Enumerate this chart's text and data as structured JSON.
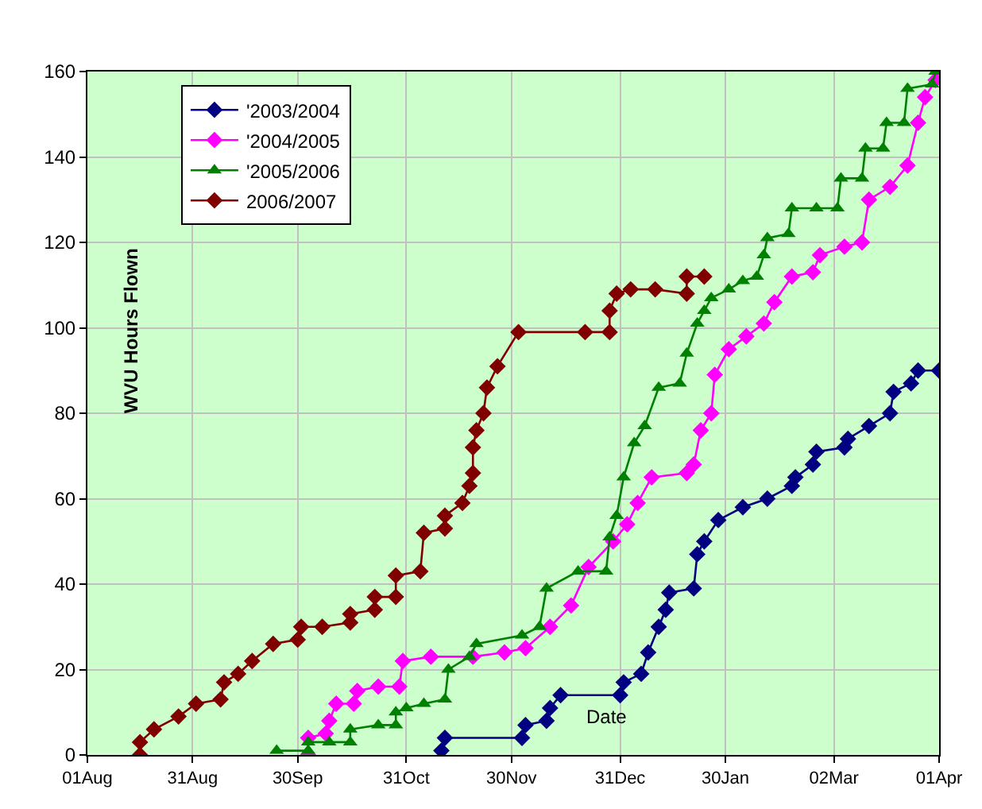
{
  "chart_data": {
    "type": "line",
    "ylabel": "WVU Hours Flown",
    "xlabel": "Date",
    "xlim": [
      "2006-08-01",
      "2007-04-01"
    ],
    "xticks": [
      {
        "value": "2006-08-01",
        "label": "01Aug"
      },
      {
        "value": "2006-08-31",
        "label": "31Aug"
      },
      {
        "value": "2006-09-30",
        "label": "30Sep"
      },
      {
        "value": "2006-10-31",
        "label": "31Oct"
      },
      {
        "value": "2006-11-30",
        "label": "30Nov"
      },
      {
        "value": "2006-12-31",
        "label": "31Dec"
      },
      {
        "value": "2007-01-30",
        "label": "30Jan"
      },
      {
        "value": "2007-03-02",
        "label": "02Mar"
      },
      {
        "value": "2007-04-01",
        "label": "01Apr"
      }
    ],
    "ylim": [
      0,
      160
    ],
    "yticks": [
      0,
      20,
      40,
      60,
      80,
      100,
      120,
      140,
      160
    ],
    "grid": true,
    "legend": "top left",
    "line_style": "solid",
    "series": [
      {
        "name": "'2003/2004",
        "color": "#000080",
        "marker": "diamond",
        "x": [
          "2006-11-10",
          "2006-11-11",
          "2006-12-03",
          "2006-12-04",
          "2006-12-10",
          "2006-12-11",
          "2006-12-14",
          "2006-12-31",
          "2007-01-01",
          "2007-01-06",
          "2007-01-08",
          "2007-01-11",
          "2007-01-13",
          "2007-01-14",
          "2007-01-21",
          "2007-01-22",
          "2007-01-24",
          "2007-01-28",
          "2007-02-04",
          "2007-02-11",
          "2007-02-18",
          "2007-02-19",
          "2007-02-24",
          "2007-02-25",
          "2007-03-05",
          "2007-03-06",
          "2007-03-12",
          "2007-03-18",
          "2007-03-19",
          "2007-03-24",
          "2007-03-26",
          "2007-04-01"
        ],
        "values": [
          1,
          4,
          4,
          7,
          8,
          11,
          14,
          14,
          17,
          19,
          24,
          30,
          34,
          38,
          39,
          47,
          50,
          55,
          58,
          60,
          63,
          65,
          68,
          71,
          72,
          74,
          77,
          80,
          85,
          87,
          90,
          90
        ]
      },
      {
        "name": "'2004/2005",
        "color": "#ff00ff",
        "marker": "diamond",
        "x": [
          "2006-10-03",
          "2006-10-03",
          "2006-10-08",
          "2006-10-09",
          "2006-10-11",
          "2006-10-16",
          "2006-10-17",
          "2006-10-23",
          "2006-10-29",
          "2006-10-30",
          "2006-11-07",
          "2006-11-19",
          "2006-11-28",
          "2006-12-04",
          "2006-12-11",
          "2006-12-17",
          "2006-12-22",
          "2006-12-29",
          "2007-01-02",
          "2007-01-05",
          "2007-01-09",
          "2007-01-19",
          "2007-01-21",
          "2007-01-23",
          "2007-01-26",
          "2007-01-27",
          "2007-01-31",
          "2007-02-05",
          "2007-02-10",
          "2007-02-13",
          "2007-02-18",
          "2007-02-24",
          "2007-02-26",
          "2007-03-05",
          "2007-03-10",
          "2007-03-12",
          "2007-03-18",
          "2007-03-23",
          "2007-03-26",
          "2007-03-28",
          "2007-03-31"
        ],
        "values": [
          0,
          4,
          5,
          8,
          12,
          12,
          15,
          16,
          16,
          22,
          23,
          23,
          24,
          25,
          30,
          35,
          44,
          50,
          54,
          59,
          65,
          66,
          68,
          76,
          80,
          89,
          95,
          98,
          101,
          106,
          112,
          113,
          117,
          119,
          120,
          130,
          133,
          138,
          148,
          154,
          158
        ]
      },
      {
        "name": "'2005/2006",
        "color": "#008000",
        "marker": "triangle",
        "x": [
          "2006-09-24",
          "2006-10-03",
          "2006-10-03",
          "2006-10-09",
          "2006-10-15",
          "2006-10-15",
          "2006-10-23",
          "2006-10-28",
          "2006-10-28",
          "2006-10-31",
          "2006-11-05",
          "2006-11-11",
          "2006-11-12",
          "2006-11-18",
          "2006-11-20",
          "2006-12-03",
          "2006-12-08",
          "2006-12-10",
          "2006-12-19",
          "2006-12-27",
          "2006-12-28",
          "2006-12-30",
          "2007-01-01",
          "2007-01-04",
          "2007-01-07",
          "2007-01-11",
          "2007-01-17",
          "2007-01-19",
          "2007-01-22",
          "2007-01-24",
          "2007-01-26",
          "2007-01-31",
          "2007-02-04",
          "2007-02-08",
          "2007-02-10",
          "2007-02-11",
          "2007-02-17",
          "2007-02-18",
          "2007-02-25",
          "2007-03-03",
          "2007-03-04",
          "2007-03-10",
          "2007-03-11",
          "2007-03-16",
          "2007-03-17",
          "2007-03-22",
          "2007-03-23",
          "2007-03-30",
          "2007-03-31"
        ],
        "values": [
          1,
          1,
          3,
          3,
          3,
          6,
          7,
          7,
          10,
          11,
          12,
          13,
          20,
          23,
          26,
          28,
          30,
          39,
          43,
          43,
          51,
          56,
          65,
          73,
          77,
          86,
          87,
          94,
          101,
          104,
          107,
          109,
          111,
          112,
          117,
          121,
          122,
          128,
          128,
          128,
          135,
          135,
          142,
          142,
          148,
          148,
          156,
          157,
          160
        ]
      },
      {
        "name": "2006/2007",
        "color": "#800000",
        "marker": "diamond",
        "x": [
          "2006-08-16",
          "2006-08-16",
          "2006-08-20",
          "2006-08-27",
          "2006-09-01",
          "2006-09-08",
          "2006-09-09",
          "2006-09-13",
          "2006-09-17",
          "2006-09-23",
          "2006-09-30",
          "2006-10-01",
          "2006-10-07",
          "2006-10-15",
          "2006-10-15",
          "2006-10-22",
          "2006-10-22",
          "2006-10-28",
          "2006-10-28",
          "2006-11-04",
          "2006-11-05",
          "2006-11-11",
          "2006-11-11",
          "2006-11-16",
          "2006-11-18",
          "2006-11-19",
          "2006-11-19",
          "2006-11-20",
          "2006-11-22",
          "2006-11-23",
          "2006-11-26",
          "2006-12-02",
          "2006-12-21",
          "2006-12-28",
          "2006-12-28",
          "2006-12-30",
          "2007-01-03",
          "2007-01-10",
          "2007-01-19",
          "2007-01-19",
          "2007-01-24"
        ],
        "values": [
          0,
          3,
          6,
          9,
          12,
          13,
          17,
          19,
          22,
          26,
          27,
          30,
          30,
          31,
          33,
          34,
          37,
          37,
          42,
          43,
          52,
          53,
          56,
          59,
          63,
          66,
          72,
          76,
          80,
          86,
          91,
          99,
          99,
          99,
          104,
          108,
          109,
          109,
          108,
          112,
          112
        ]
      }
    ]
  }
}
